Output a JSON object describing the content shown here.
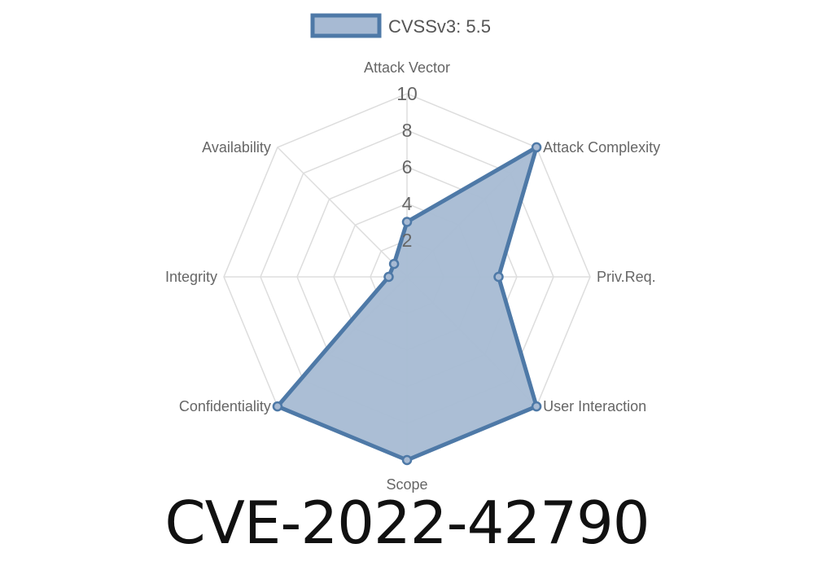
{
  "title": "CVE-2022-42790",
  "chart_data": {
    "type": "radar",
    "legend": {
      "label": "CVSSv3: 5.5",
      "placement": "top"
    },
    "axes": [
      "Attack Vector",
      "Attack Complexity",
      "Priv.Req.",
      "User Interaction",
      "Scope",
      "Confidentiality",
      "Integrity",
      "Availability"
    ],
    "series": [
      {
        "name": "CVSSv3: 5.5",
        "values": [
          3,
          10,
          5,
          10,
          10,
          10,
          1,
          1
        ]
      }
    ],
    "r_ticks": [
      "2",
      "4",
      "6",
      "8",
      "10"
    ],
    "rlim": [
      0,
      10
    ],
    "grid": true,
    "colors": {
      "line": "#4e79a7",
      "fill": "#a7bad3",
      "grid": "#dddddd"
    }
  }
}
